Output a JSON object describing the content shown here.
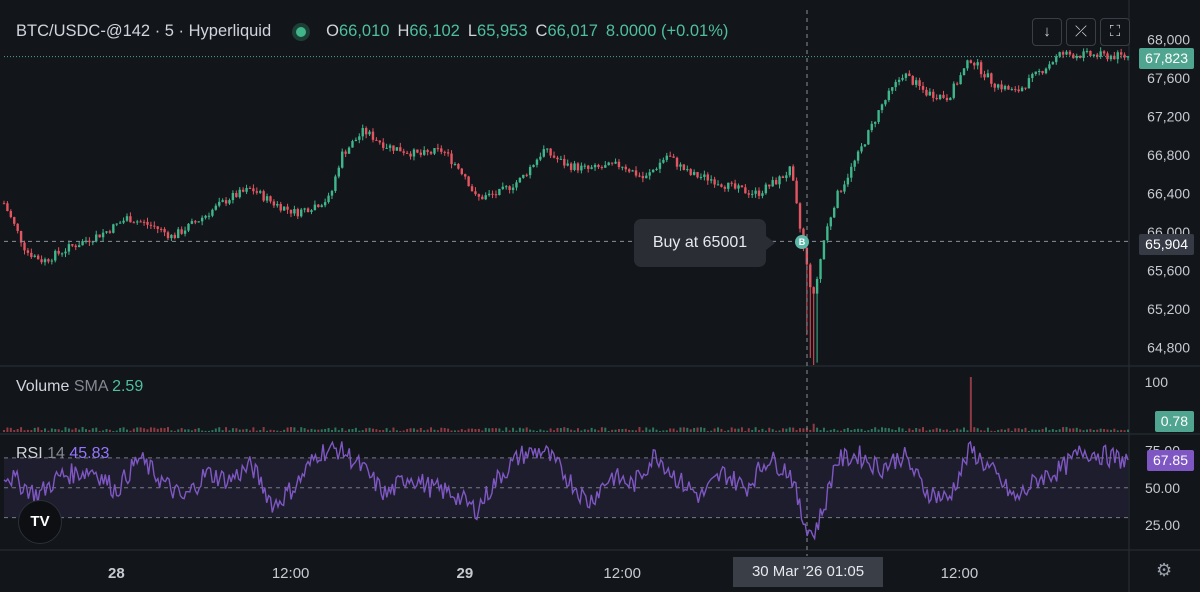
{
  "header": {
    "symbol": "BTC/USDC-@142 · 5 · Hyperliquid",
    "open_label": "O",
    "open": "66,010",
    "high_label": "H",
    "high": "66,102",
    "low_label": "L",
    "low": "65,953",
    "close_label": "C",
    "close": "66,017",
    "change": "8.0000 (+0.01%)"
  },
  "toolbar": {
    "down_icon": "↓",
    "collapse_icon": "⤫",
    "fullscreen_icon": "⛶"
  },
  "volume_pane": {
    "label": "Volume",
    "sma_label": "SMA",
    "sma_value": "2.59",
    "last_value_tag": "0.78",
    "axis_tick": "100"
  },
  "rsi_pane": {
    "label": "RSI",
    "length": "14",
    "value": "45.83",
    "last_value_tag": "67.85"
  },
  "price_tags": {
    "last_price": "67,823",
    "crosshair_price": "65,904"
  },
  "tooltip": {
    "text": "Buy at 65001",
    "marker": "B"
  },
  "crosshair_time": "30 Mar '26   01:05",
  "logo_text": "TV",
  "colors": {
    "up": "#3fb68b",
    "down": "#e35561",
    "rsi": "#7e57c2",
    "background": "#121519"
  },
  "chart_data": [
    {
      "type": "candlestick",
      "title": "BTC/USDC-@142 · 5 · Hyperliquid",
      "x_ticks": [
        "28",
        "12:00",
        "29",
        "12:00",
        "30 Mar '26  01:05",
        "12:00"
      ],
      "y_ticks": [
        64800,
        65200,
        65600,
        66000,
        66400,
        66800,
        67200,
        67600,
        68000
      ],
      "ylim": [
        64650,
        68100
      ],
      "last_price": 67823,
      "crosshair_price": 65904,
      "annotation": "Buy at 65001",
      "close_path": [
        [
          0,
          66300
        ],
        [
          0.02,
          65800
        ],
        [
          0.035,
          65700
        ],
        [
          0.06,
          65850
        ],
        [
          0.09,
          66000
        ],
        [
          0.11,
          66150
        ],
        [
          0.135,
          66050
        ],
        [
          0.15,
          65950
        ],
        [
          0.17,
          66100
        ],
        [
          0.2,
          66350
        ],
        [
          0.22,
          66450
        ],
        [
          0.24,
          66300
        ],
        [
          0.26,
          66200
        ],
        [
          0.29,
          66350
        ],
        [
          0.3,
          66800
        ],
        [
          0.32,
          67050
        ],
        [
          0.34,
          66900
        ],
        [
          0.37,
          66800
        ],
        [
          0.39,
          66850
        ],
        [
          0.41,
          66600
        ],
        [
          0.42,
          66350
        ],
        [
          0.44,
          66400
        ],
        [
          0.46,
          66550
        ],
        [
          0.48,
          66850
        ],
        [
          0.5,
          66700
        ],
        [
          0.52,
          66650
        ],
        [
          0.55,
          66700
        ],
        [
          0.57,
          66550
        ],
        [
          0.59,
          66800
        ],
        [
          0.61,
          66600
        ],
        [
          0.63,
          66550
        ],
        [
          0.65,
          66450
        ],
        [
          0.67,
          66400
        ],
        [
          0.69,
          66550
        ],
        [
          0.7,
          66650
        ],
        [
          0.71,
          65900
        ],
        [
          0.72,
          65300
        ],
        [
          0.73,
          65950
        ],
        [
          0.74,
          66350
        ],
        [
          0.76,
          66800
        ],
        [
          0.78,
          67300
        ],
        [
          0.8,
          67650
        ],
        [
          0.82,
          67450
        ],
        [
          0.84,
          67400
        ],
        [
          0.86,
          67800
        ],
        [
          0.88,
          67550
        ],
        [
          0.9,
          67450
        ],
        [
          0.92,
          67650
        ],
        [
          0.94,
          67850
        ],
        [
          1.0,
          67823
        ]
      ]
    },
    {
      "type": "bar",
      "title": "Volume",
      "axis_ticks": [
        100
      ],
      "sma": 2.59,
      "last_value": 0.78,
      "spikes": [
        {
          "x_frac": 0.72,
          "value": 15
        },
        {
          "x_frac": 0.86,
          "value": 100
        }
      ]
    },
    {
      "type": "line",
      "title": "RSI 14",
      "y_ticks": [
        25,
        50,
        75
      ],
      "ylim": [
        15,
        82
      ],
      "band": [
        30,
        70
      ],
      "value": 45.83,
      "last_value": 67.85,
      "path": [
        [
          0,
          60
        ],
        [
          0.03,
          45
        ],
        [
          0.05,
          58
        ],
        [
          0.08,
          62
        ],
        [
          0.1,
          48
        ],
        [
          0.12,
          70
        ],
        [
          0.14,
          55
        ],
        [
          0.16,
          42
        ],
        [
          0.18,
          60
        ],
        [
          0.2,
          55
        ],
        [
          0.22,
          65
        ],
        [
          0.24,
          38
        ],
        [
          0.26,
          52
        ],
        [
          0.28,
          74
        ],
        [
          0.3,
          76
        ],
        [
          0.32,
          62
        ],
        [
          0.34,
          45
        ],
        [
          0.36,
          58
        ],
        [
          0.38,
          50
        ],
        [
          0.4,
          46
        ],
        [
          0.42,
          35
        ],
        [
          0.44,
          57
        ],
        [
          0.46,
          72
        ],
        [
          0.48,
          75
        ],
        [
          0.5,
          58
        ],
        [
          0.52,
          40
        ],
        [
          0.54,
          58
        ],
        [
          0.56,
          52
        ],
        [
          0.58,
          73
        ],
        [
          0.6,
          55
        ],
        [
          0.62,
          44
        ],
        [
          0.64,
          60
        ],
        [
          0.66,
          50
        ],
        [
          0.68,
          70
        ],
        [
          0.7,
          60
        ],
        [
          0.71,
          30
        ],
        [
          0.72,
          18
        ],
        [
          0.73,
          38
        ],
        [
          0.74,
          68
        ],
        [
          0.76,
          72
        ],
        [
          0.78,
          63
        ],
        [
          0.8,
          72
        ],
        [
          0.82,
          48
        ],
        [
          0.84,
          42
        ],
        [
          0.86,
          76
        ],
        [
          0.88,
          60
        ],
        [
          0.9,
          42
        ],
        [
          0.92,
          56
        ],
        [
          0.94,
          62
        ],
        [
          0.96,
          75
        ],
        [
          1.0,
          67.85
        ]
      ]
    }
  ]
}
